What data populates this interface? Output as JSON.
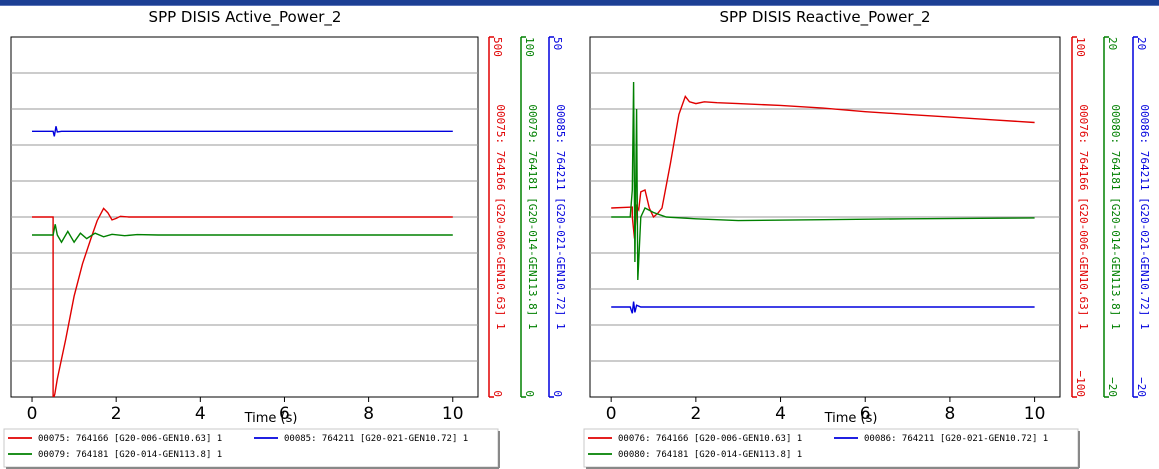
{
  "chart_data": [
    {
      "type": "line",
      "title": "SPP DISIS Active_Power_2",
      "xlabel": "Time (s)",
      "xlim": [
        -0.5,
        10.6
      ],
      "xticks": [
        "0",
        "2",
        "4",
        "6",
        "8",
        "10"
      ],
      "grid": true,
      "legend_placement": "bottom",
      "axes": [
        {
          "color": "#e00000",
          "lim": [
            0,
            500
          ],
          "min_label": "0",
          "max_label": "500",
          "label": "00075: 764166 [G20-006-GEN10.63] 1"
        },
        {
          "color": "#008000",
          "lim": [
            0,
            100
          ],
          "min_label": "0",
          "max_label": "100",
          "label": "00079: 764181 [G20-014-GEN113.8] 1"
        },
        {
          "color": "#0000dd",
          "lim": [
            0,
            50
          ],
          "min_label": "0",
          "max_label": "50",
          "label": "00085: 764211 [G20-021-GEN10.72] 1"
        }
      ],
      "series": [
        {
          "name": "00075: 764166 [G20-006-GEN10.63] 1",
          "axis": 0,
          "color": "#e00000",
          "x": [
            0,
            0.5,
            0.5,
            0.52,
            0.54,
            0.6,
            0.8,
            1.0,
            1.2,
            1.4,
            1.55,
            1.7,
            1.8,
            1.9,
            2.0,
            2.1,
            2.3,
            2.6,
            3.0,
            4.0,
            5.0,
            6.0,
            7.0,
            8.0,
            9.0,
            10.0
          ],
          "y": [
            250,
            250,
            0,
            0,
            4,
            25,
            80,
            140,
            185,
            220,
            245,
            262,
            256,
            246,
            248,
            251,
            250,
            250,
            250,
            250,
            250,
            250,
            250,
            250,
            250,
            250
          ]
        },
        {
          "name": "00079: 764181 [G20-014-GEN113.8] 1",
          "axis": 1,
          "color": "#008000",
          "x": [
            0,
            0.45,
            0.5,
            0.55,
            0.6,
            0.7,
            0.85,
            1.0,
            1.15,
            1.3,
            1.5,
            1.7,
            1.9,
            2.2,
            2.5,
            3.0,
            10.0
          ],
          "y": [
            45,
            45,
            45,
            48,
            45,
            43,
            46,
            43,
            45.5,
            44,
            45.5,
            44.5,
            45.2,
            44.8,
            45.1,
            45,
            45
          ]
        },
        {
          "name": "00085: 764211 [G20-021-GEN10.72] 1",
          "axis": 2,
          "color": "#0000dd",
          "x": [
            0,
            0.5,
            0.53,
            0.57,
            0.6,
            0.7,
            10.0
          ],
          "y": [
            36.9,
            36.9,
            36.2,
            37.6,
            36.8,
            36.9,
            36.9
          ]
        }
      ]
    },
    {
      "type": "line",
      "title": "SPP DISIS Reactive_Power_2",
      "xlabel": "Time (s)",
      "xlim": [
        -0.5,
        10.6
      ],
      "xticks": [
        "0",
        "2",
        "4",
        "6",
        "8",
        "10"
      ],
      "grid": true,
      "legend_placement": "bottom",
      "axes": [
        {
          "color": "#e00000",
          "lim": [
            -100,
            100
          ],
          "min_label": "−100",
          "max_label": "100",
          "label": "00076: 764166 [G20-006-GEN10.63] 1"
        },
        {
          "color": "#008000",
          "lim": [
            -20,
            20
          ],
          "min_label": "−20",
          "max_label": "20",
          "label": "00080: 764181 [G20-014-GEN113.8] 1"
        },
        {
          "color": "#0000dd",
          "lim": [
            -20,
            20
          ],
          "min_label": "−20",
          "max_label": "20",
          "label": "00086: 764211 [G20-021-GEN10.72] 1"
        }
      ],
      "series": [
        {
          "name": "00076: 764166 [G20-006-GEN10.63] 1",
          "axis": 0,
          "color": "#e00000",
          "x": [
            0,
            0.5,
            0.5,
            0.55,
            0.6,
            0.65,
            0.7,
            0.8,
            0.9,
            1.0,
            1.1,
            1.2,
            1.4,
            1.6,
            1.75,
            1.85,
            2.0,
            2.2,
            2.5,
            3.0,
            4.0,
            5.0,
            6.0,
            7.0,
            8.0,
            9.0,
            10.0
          ],
          "y": [
            5,
            5.5,
            0,
            -12,
            6,
            4,
            14,
            15,
            5,
            0,
            2,
            5,
            30,
            57,
            67,
            64,
            63,
            64,
            63.5,
            63,
            62,
            60.5,
            58.5,
            57,
            55.5,
            54,
            52.5
          ]
        },
        {
          "name": "00080: 764181 [G20-014-GEN113.8] 1",
          "axis": 1,
          "color": "#008000",
          "x": [
            0,
            0.45,
            0.5,
            0.53,
            0.56,
            0.6,
            0.63,
            0.7,
            0.8,
            1.0,
            1.3,
            2.0,
            3.0,
            5.0,
            7.0,
            10.0
          ],
          "y": [
            0,
            0,
            3,
            15,
            -5,
            12,
            -7,
            0,
            1,
            0.5,
            0,
            -0.2,
            -0.4,
            -0.3,
            -0.2,
            -0.1
          ]
        },
        {
          "name": "00086: 764211 [G20-021-GEN10.72] 1",
          "axis": 2,
          "color": "#0000dd",
          "x": [
            0,
            0.45,
            0.5,
            0.53,
            0.56,
            0.6,
            0.7,
            10.0
          ],
          "y": [
            -10,
            -10,
            -10.7,
            -9.4,
            -10.6,
            -9.8,
            -10,
            -10
          ]
        }
      ]
    }
  ]
}
